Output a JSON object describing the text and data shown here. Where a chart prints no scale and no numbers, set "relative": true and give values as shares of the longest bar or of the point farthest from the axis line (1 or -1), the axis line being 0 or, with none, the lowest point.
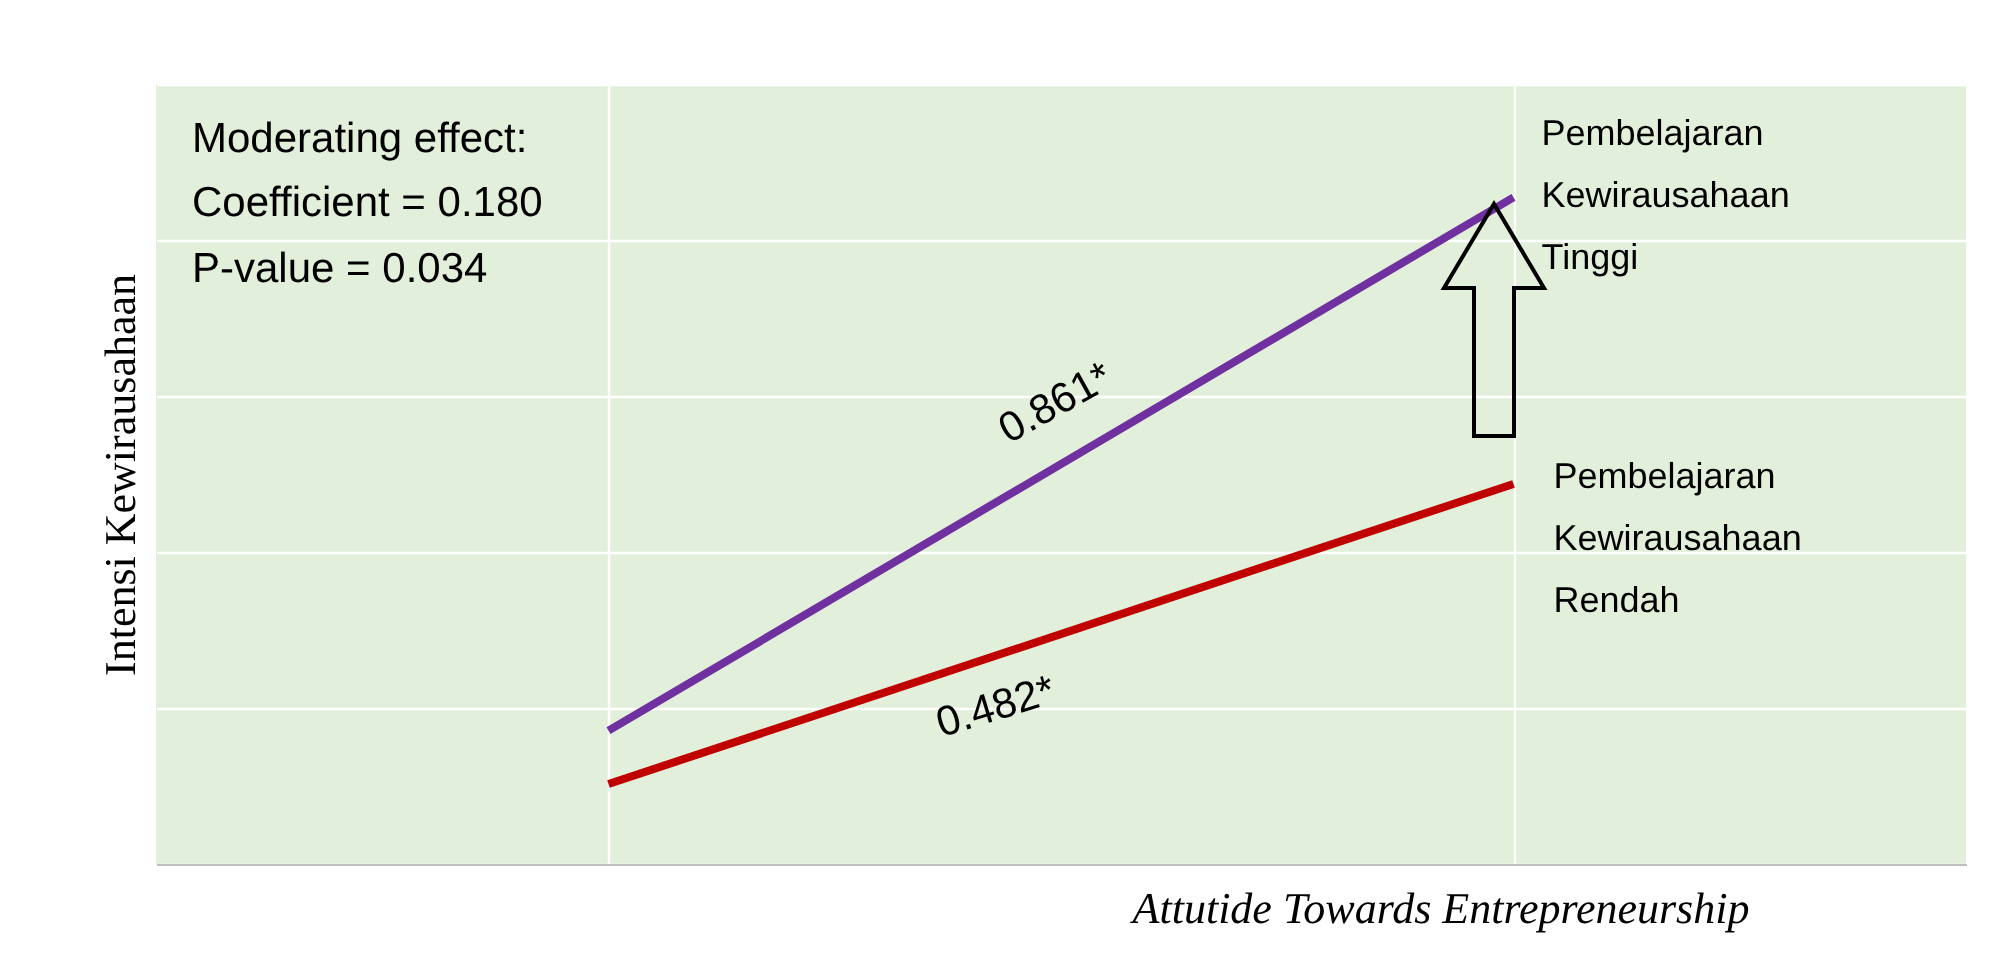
{
  "chart_data": {
    "type": "line",
    "relative": true,
    "categories": [
      null,
      null
    ],
    "xlabel": "Attutide Towards Entrepreneurship",
    "ylabel": "Intensi Kewirausahaan",
    "series": [
      {
        "name": "Pembelajaran Kewirausahaan Tinggi",
        "color": "#7030a0",
        "values": [
          0.2,
          1
        ]
      },
      {
        "name": "Pembelajaran Kewirausahaan Rendah",
        "color": "#c00000",
        "values": [
          0.12,
          0.57
        ]
      }
    ],
    "annotations": [
      "Moderating effect:",
      "Coefficient = 0.180",
      "P-value = 0.034",
      "0.861*",
      "0.482*"
    ],
    "grid": true,
    "marker": "none",
    "line_style": "solid",
    "legend": false
  }
}
